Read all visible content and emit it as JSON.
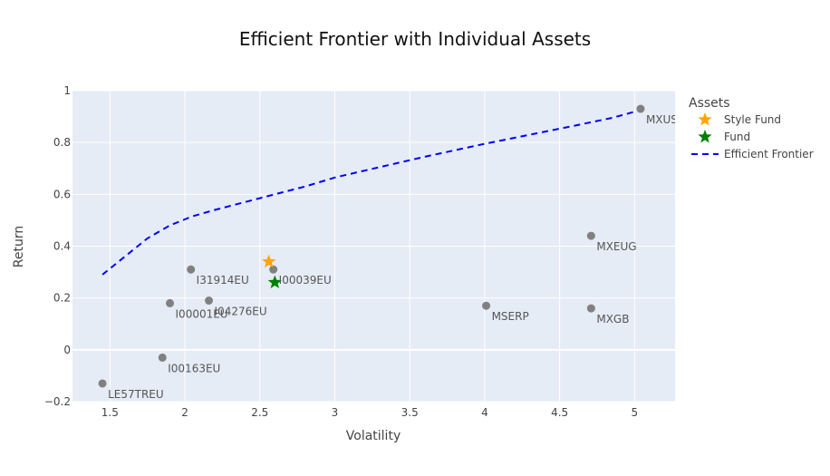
{
  "chart_data": {
    "type": "scatter",
    "title": "Efficient Frontier with Individual Assets",
    "xlabel": "Volatility",
    "ylabel": "Return",
    "xlim": [
      1.25,
      5.27
    ],
    "ylim": [
      -0.2,
      1.0
    ],
    "xticks": [
      1.5,
      2,
      2.5,
      3,
      3.5,
      4,
      4.5,
      5
    ],
    "xtick_labels": [
      "1.5",
      "2",
      "2.5",
      "3",
      "3.5",
      "4",
      "4.5",
      "5"
    ],
    "yticks": [
      -0.2,
      0,
      0.2,
      0.4,
      0.6,
      0.8,
      1
    ],
    "ytick_labels": [
      "−0.2",
      "0",
      "0.2",
      "0.4",
      "0.6",
      "0.8",
      "1"
    ],
    "grid": true,
    "legend": {
      "title": "Assets",
      "placement": "right"
    },
    "colors": {
      "plot_bg": "#e5ecf6",
      "asset": "#808080",
      "style_fund": "#ffa500",
      "fund": "#008000",
      "frontier": "#0000ff"
    },
    "assets": [
      {
        "label": "LE57TREU",
        "x": 1.45,
        "y": -0.13
      },
      {
        "label": "I00163EU",
        "x": 1.85,
        "y": -0.03
      },
      {
        "label": "I00001EU",
        "x": 1.9,
        "y": 0.18
      },
      {
        "label": "I31914EU",
        "x": 2.04,
        "y": 0.31
      },
      {
        "label": "I04276EU",
        "x": 2.16,
        "y": 0.19
      },
      {
        "label": "I00039EU",
        "x": 2.59,
        "y": 0.31
      },
      {
        "label": "MSERP",
        "x": 4.01,
        "y": 0.17
      },
      {
        "label": "MXEUG",
        "x": 4.71,
        "y": 0.44
      },
      {
        "label": "MXGB",
        "x": 4.71,
        "y": 0.16
      },
      {
        "label": "MXUS",
        "x": 5.04,
        "y": 0.93
      }
    ],
    "series": [
      {
        "name": "Style Fund",
        "type": "scatter",
        "marker": "star",
        "x": [
          2.56
        ],
        "y": [
          0.34
        ]
      },
      {
        "name": "Fund",
        "type": "scatter",
        "marker": "star",
        "x": [
          2.6
        ],
        "y": [
          0.26
        ]
      },
      {
        "name": "Efficient Frontier",
        "type": "line",
        "dash": "dashed",
        "x": [
          1.45,
          1.6,
          1.75,
          1.9,
          2.05,
          2.2,
          2.4,
          2.6,
          2.8,
          3.0,
          3.3,
          3.6,
          4.0,
          4.3,
          4.6,
          4.85,
          5.04
        ],
        "y": [
          0.29,
          0.36,
          0.43,
          0.48,
          0.515,
          0.54,
          0.57,
          0.6,
          0.63,
          0.665,
          0.705,
          0.745,
          0.795,
          0.83,
          0.865,
          0.895,
          0.925
        ]
      }
    ]
  }
}
